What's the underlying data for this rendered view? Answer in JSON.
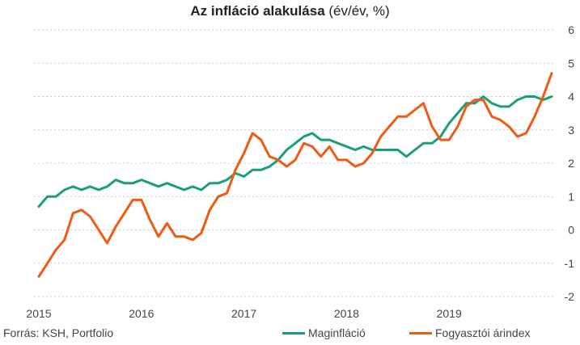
{
  "chart_data": {
    "type": "line",
    "title_bold": "Az infláció alakulása",
    "title_rest": " (év/év, %)",
    "source": "Forrás: KSH, Portfolio",
    "xlabel": "",
    "ylabel": "",
    "ylim": [
      -2,
      6
    ],
    "yticks": [
      "6",
      "5",
      "4",
      "3",
      "2",
      "1",
      "0",
      "-1",
      "-2"
    ],
    "x_tick_labels": [
      "2015",
      "2016",
      "2017",
      "2018",
      "2019"
    ],
    "x_start": "2015-01",
    "x_end": "2019-12",
    "grid": "horizontal",
    "legend_position": "bottom-right",
    "series": [
      {
        "name": "Maginfláció",
        "color": "#1a9e77",
        "values": [
          0.7,
          1.0,
          1.0,
          1.2,
          1.3,
          1.2,
          1.3,
          1.2,
          1.3,
          1.5,
          1.4,
          1.4,
          1.5,
          1.4,
          1.3,
          1.4,
          1.3,
          1.2,
          1.3,
          1.2,
          1.4,
          1.4,
          1.5,
          1.7,
          1.6,
          1.8,
          1.8,
          1.9,
          2.1,
          2.4,
          2.6,
          2.8,
          2.9,
          2.7,
          2.7,
          2.6,
          2.5,
          2.4,
          2.5,
          2.4,
          2.4,
          2.4,
          2.4,
          2.2,
          2.4,
          2.6,
          2.6,
          2.8,
          3.2,
          3.5,
          3.8,
          3.8,
          4.0,
          3.8,
          3.7,
          3.7,
          3.9,
          4.0,
          4.0,
          3.9,
          4.0
        ]
      },
      {
        "name": "Fogyasztói árindex",
        "color": "#ef5a14",
        "values": [
          -1.4,
          -1.0,
          -0.6,
          -0.3,
          0.5,
          0.6,
          0.4,
          0.0,
          -0.4,
          0.1,
          0.5,
          0.9,
          0.9,
          0.3,
          -0.2,
          0.2,
          -0.2,
          -0.2,
          -0.3,
          -0.1,
          0.6,
          1.0,
          1.1,
          1.8,
          2.3,
          2.9,
          2.7,
          2.2,
          2.1,
          1.9,
          2.1,
          2.6,
          2.5,
          2.2,
          2.5,
          2.1,
          2.1,
          1.9,
          2.0,
          2.3,
          2.8,
          3.1,
          3.4,
          3.4,
          3.6,
          3.8,
          3.1,
          2.7,
          2.7,
          3.1,
          3.7,
          3.9,
          3.9,
          3.4,
          3.3,
          3.1,
          2.8,
          2.9,
          3.4,
          4.0,
          4.7
        ]
      }
    ]
  }
}
